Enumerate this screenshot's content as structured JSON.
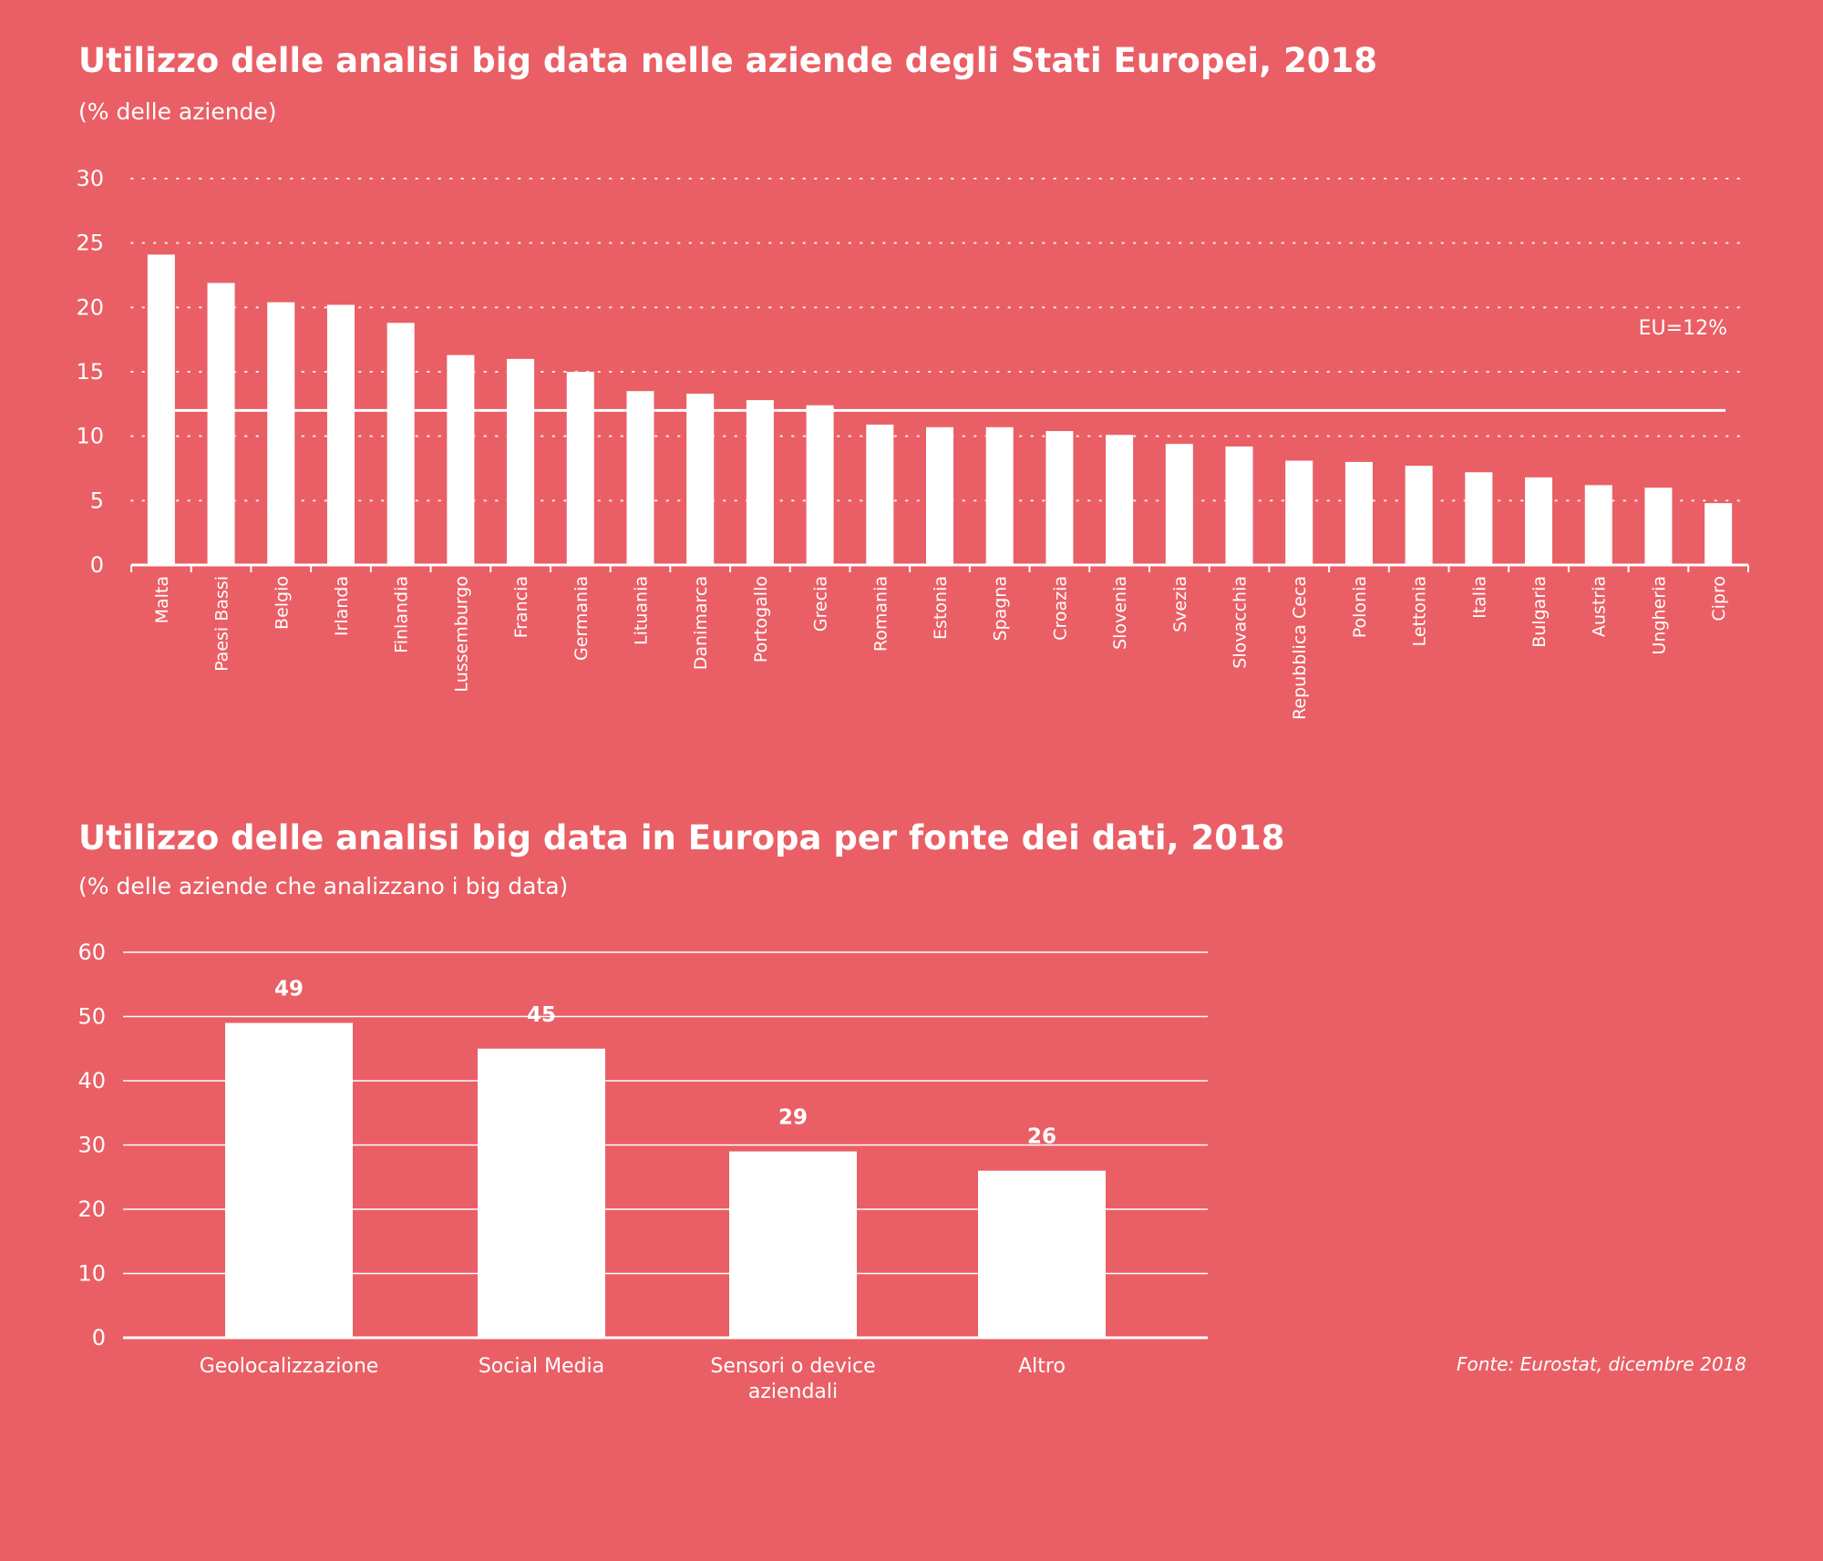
{
  "source": "Fonte: Eurostat, dicembre 2018",
  "colors": {
    "background": "#E95F65",
    "bars": "#FFFFFF"
  },
  "chart_data": [
    {
      "type": "bar",
      "title": "Utilizzo delle analisi big data nelle aziende degli Stati Europei, 2018",
      "subtitle": "(% delle aziende)",
      "categories": [
        "Malta",
        "Paesi Bassi",
        "Belgio",
        "Irlanda",
        "Finlandia",
        "Lussemburgo",
        "Francia",
        "Germania",
        "Lituania",
        "Danimarca",
        "Portogallo",
        "Grecia",
        "Romania",
        "Estonia",
        "Spagna",
        "Croazia",
        "Slovenia",
        "Svezia",
        "Slovacchia",
        "Repubblica Ceca",
        "Polonia",
        "Lettonia",
        "Italia",
        "Bulgaria",
        "Austria",
        "Ungheria",
        "Cipro"
      ],
      "values": [
        24.1,
        21.9,
        20.4,
        20.2,
        18.8,
        16.3,
        16.0,
        15.0,
        13.5,
        13.3,
        12.8,
        12.4,
        10.9,
        10.7,
        10.7,
        10.4,
        10.1,
        9.4,
        9.2,
        8.1,
        8.0,
        7.7,
        7.2,
        6.8,
        6.2,
        6.0,
        4.8
      ],
      "ylim": [
        0,
        30
      ],
      "yticks": [
        0,
        5,
        10,
        15,
        20,
        25,
        30
      ],
      "grid": "dotted horizontal",
      "reference_line": {
        "value": 12,
        "label": "EU=12%"
      }
    },
    {
      "type": "bar",
      "title": "Utilizzo delle analisi big data in Europa per fonte dei dati, 2018",
      "subtitle": "(% delle aziende che analizzano i big data)",
      "categories": [
        "Geolocalizzazione",
        "Social Media",
        "Sensori o device aziendali",
        "Altro"
      ],
      "category_lines": [
        [
          "Geolocalizzazione"
        ],
        [
          "Social Media"
        ],
        [
          "Sensori o device",
          "aziendali"
        ],
        [
          "Altro"
        ]
      ],
      "values": [
        49,
        45,
        29,
        26
      ],
      "data_labels": [
        "49",
        "45",
        "29",
        "26"
      ],
      "ylim": [
        0,
        60
      ],
      "yticks": [
        0,
        10,
        20,
        30,
        40,
        50,
        60
      ],
      "grid": "solid horizontal"
    }
  ]
}
